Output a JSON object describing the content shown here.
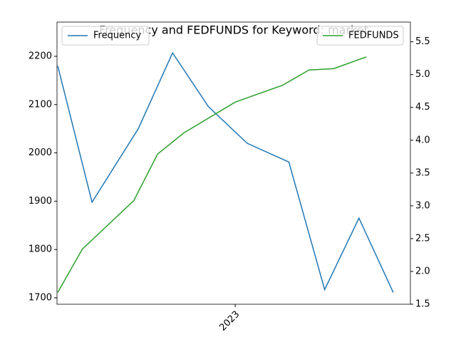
{
  "chart_data": {
    "type": "line",
    "title": "Frequency and FEDFUNDS for Keyword: market",
    "xlim": [
      2022.4025,
      2023.5875
    ],
    "xticks": [
      2023
    ],
    "ylim": [
      1686.7,
      2270.8
    ],
    "yticks": [
      1700,
      1800,
      1900,
      2000,
      2100,
      2200
    ],
    "y2lim": [
      1.5,
      5.8
    ],
    "y2ticks": [
      1.5,
      {
        "value": 2,
        "label": "2.0"
      },
      2.5,
      {
        "value": 3,
        "label": "3.0"
      },
      3.5,
      {
        "value": 4,
        "label": "4.0"
      },
      4.5,
      {
        "value": 5,
        "label": "5.0"
      },
      5.5
    ],
    "series": [
      {
        "name": "Frequency",
        "color": "#1f77b4",
        "x": [
          2022.405,
          2022.52,
          2022.675,
          2022.79,
          2022.91,
          2023.04,
          2023.18,
          2023.3,
          2023.415,
          2023.53
        ],
        "values": [
          2180,
          1898,
          2050,
          2207,
          2096,
          2020,
          1981,
          1717,
          1865,
          1711
        ],
        "legend": "upper left"
      },
      {
        "name": "FEDFUNDS",
        "color": "#2ca02c",
        "axis": "y2",
        "x": [
          2022.405,
          2022.4875,
          2022.66,
          2022.74,
          2022.8275,
          2023.0,
          2023.16,
          2023.2475,
          2023.33,
          2023.44
        ],
        "values": [
          1.68,
          2.34,
          3.08,
          3.79,
          4.11,
          4.58,
          4.84,
          5.07,
          5.09,
          5.27
        ],
        "legend": "upper right"
      }
    ]
  }
}
